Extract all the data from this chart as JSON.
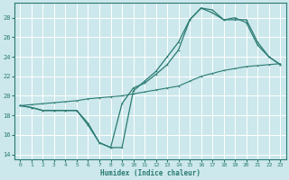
{
  "xlabel": "Humidex (Indice chaleur)",
  "xlim": [
    -0.5,
    23.5
  ],
  "ylim": [
    13.5,
    29.5
  ],
  "yticks": [
    14,
    16,
    18,
    20,
    22,
    24,
    26,
    28
  ],
  "xticks": [
    0,
    1,
    2,
    3,
    4,
    5,
    6,
    7,
    8,
    9,
    10,
    11,
    12,
    13,
    14,
    15,
    16,
    17,
    18,
    19,
    20,
    21,
    22,
    23
  ],
  "bg_color": "#cce8ec",
  "grid_color": "#b0d8dc",
  "line_color": "#2a7a72",
  "line1_x": [
    0,
    1,
    2,
    3,
    4,
    5,
    6,
    7,
    8,
    9,
    10,
    11,
    12,
    13,
    14,
    15,
    16,
    17,
    18,
    19,
    20,
    21,
    22,
    23
  ],
  "line1_y": [
    19.0,
    18.8,
    18.5,
    18.5,
    18.5,
    18.5,
    17.0,
    15.2,
    14.7,
    19.2,
    20.8,
    21.3,
    22.2,
    23.2,
    24.7,
    27.8,
    29.0,
    28.8,
    27.8,
    27.8,
    27.8,
    25.5,
    24.0,
    23.2
  ],
  "line2_x": [
    0,
    1,
    2,
    3,
    4,
    5,
    6,
    7,
    8,
    9,
    10,
    11,
    12,
    13,
    14,
    15,
    16,
    17,
    18,
    19,
    20,
    21,
    22,
    23
  ],
  "line2_y": [
    19.0,
    18.8,
    18.5,
    18.5,
    18.5,
    18.5,
    17.2,
    15.2,
    14.7,
    14.7,
    20.5,
    21.5,
    22.5,
    24.0,
    25.5,
    27.8,
    29.0,
    28.5,
    27.8,
    28.0,
    27.5,
    25.2,
    24.0,
    23.2
  ],
  "line3_x": [
    0,
    1,
    2,
    3,
    4,
    5,
    6,
    7,
    8,
    9,
    10,
    11,
    12,
    13,
    14,
    15,
    16,
    17,
    18,
    19,
    20,
    21,
    22,
    23
  ],
  "line3_y": [
    19.0,
    19.1,
    19.2,
    19.3,
    19.4,
    19.5,
    19.7,
    19.8,
    19.9,
    20.0,
    20.2,
    20.4,
    20.6,
    20.8,
    21.0,
    21.5,
    22.0,
    22.3,
    22.6,
    22.8,
    23.0,
    23.1,
    23.2,
    23.3
  ]
}
